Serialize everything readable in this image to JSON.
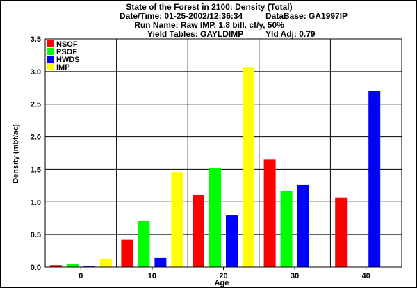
{
  "header": {
    "title": "State of the Forest in 2100: Density (Total)",
    "datetime_label": "Date/Time: 01-25-2002/12:36:34",
    "database_label": "DataBase: GA1997IP",
    "run_name_label": "Run Name: Raw IMP, 1.8 bill. cf/y, 50%",
    "yield_tables_label": "Yield Tables: GAYLDIMP",
    "yld_adj_label": "Yld Adj: 0.79"
  },
  "chart_data": {
    "type": "bar",
    "title": "State of the Forest in 2100: Density (Total)",
    "xlabel": "Age",
    "ylabel": "Density (mbf/ac)",
    "categories": [
      "0",
      "10",
      "20",
      "30",
      "40"
    ],
    "ylim": [
      0,
      3.5
    ],
    "yticks": [
      "0.0",
      "0.5",
      "1.0",
      "1.5",
      "2.0",
      "2.5",
      "3.0",
      "3.5"
    ],
    "grid": true,
    "legend_position": "top-left",
    "series": [
      {
        "name": "NSOF",
        "color": "#ff0000",
        "values": [
          0.03,
          0.42,
          1.1,
          1.65,
          1.07
        ]
      },
      {
        "name": "PSOF",
        "color": "#00ff00",
        "values": [
          0.05,
          0.71,
          1.52,
          1.17,
          0.0
        ]
      },
      {
        "name": "HWDS",
        "color": "#0000ff",
        "values": [
          0.01,
          0.14,
          0.8,
          1.26,
          2.7
        ]
      },
      {
        "name": "IMP",
        "color": "#ffff00",
        "values": [
          0.13,
          1.46,
          3.06,
          0.0,
          0.0
        ]
      }
    ]
  }
}
